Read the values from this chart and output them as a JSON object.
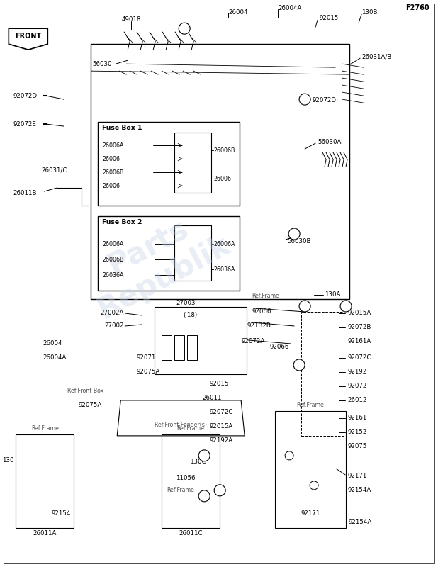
{
  "bg_color": "#ffffff",
  "line_color": "#000000",
  "text_color": "#000000",
  "watermark_text": "Parts\nRepublik",
  "watermark_color": "#c8d4e8",
  "watermark_alpha": 0.4,
  "page_ref": "F2760",
  "fuse_box_1": {
    "title": "Fuse Box 1",
    "left_labels": [
      "26006",
      "26006B",
      "26006",
      "26006A"
    ],
    "right_labels": [
      "26006",
      "26006B"
    ]
  },
  "fuse_box_2": {
    "title": "Fuse Box 2",
    "left_labels": [
      "26036A",
      "26006B",
      "26006A"
    ],
    "right_labels": [
      "26036A",
      "26006A"
    ]
  }
}
